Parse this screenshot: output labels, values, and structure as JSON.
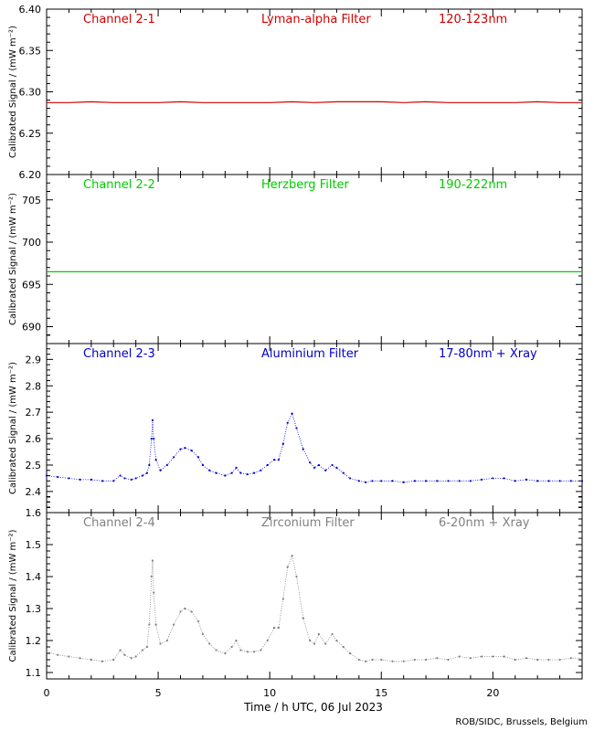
{
  "credit": "ROB/SIDC, Brussels, Belgium",
  "xlabel": "Time / h UTC, 06 Jul 2023",
  "xlim": [
    0,
    24
  ],
  "xticks": [
    0,
    5,
    10,
    15,
    20
  ],
  "chart_data": [
    {
      "type": "line",
      "channel": "Channel 2-1",
      "filter": "Lyman-alpha Filter",
      "band": "120-123nm",
      "ylabel": "Calibrated Signal / (mW m⁻²)",
      "ylim": [
        6.2,
        6.4
      ],
      "yticks": [
        6.2,
        6.25,
        6.3,
        6.35,
        6.4
      ],
      "ytick_labels": [
        "6.20",
        "6.25",
        "6.30",
        "6.35",
        "6.40"
      ],
      "color": "#d00000",
      "series": [
        {
          "x": [
            0,
            1,
            2,
            3,
            4,
            5,
            6,
            7,
            8,
            9,
            10,
            11,
            12,
            13,
            14,
            15,
            16,
            17,
            18,
            19,
            20,
            21,
            22,
            23,
            24
          ],
          "values": [
            6.287,
            6.287,
            6.288,
            6.287,
            6.287,
            6.287,
            6.288,
            6.287,
            6.287,
            6.287,
            6.287,
            6.288,
            6.287,
            6.288,
            6.288,
            6.288,
            6.287,
            6.288,
            6.287,
            6.287,
            6.287,
            6.287,
            6.288,
            6.287,
            6.287
          ]
        }
      ]
    },
    {
      "type": "line",
      "channel": "Channel 2-2",
      "filter": "Herzberg Filter",
      "band": "190-222nm",
      "ylabel": "Calibrated Signal / (mW m⁻²)",
      "ylim": [
        688,
        708
      ],
      "yticks": [
        690,
        695,
        700,
        705
      ],
      "ytick_labels": [
        "690",
        "695",
        "700",
        "705"
      ],
      "color": "#00cc00",
      "series": [
        {
          "x": [
            0,
            2,
            4,
            6,
            8,
            10,
            12,
            14,
            16,
            18,
            20,
            22,
            24
          ],
          "values": [
            696.5,
            696.5,
            696.5,
            696.5,
            696.5,
            696.5,
            696.5,
            696.5,
            696.5,
            696.5,
            696.5,
            696.5,
            696.5
          ]
        }
      ]
    },
    {
      "type": "scatter",
      "channel": "Channel 2-3",
      "filter": "Aluminium Filter",
      "band": "17-80nm + Xray",
      "ylabel": "Calibrated Signal / (mW m⁻²)",
      "ylim": [
        2.32,
        2.96
      ],
      "yticks": [
        2.4,
        2.5,
        2.6,
        2.7,
        2.8,
        2.9
      ],
      "ytick_labels": [
        "2.4",
        "2.5",
        "2.6",
        "2.7",
        "2.8",
        "2.9"
      ],
      "color": "#0000cc",
      "series": [
        {
          "x": [
            0,
            0.5,
            1,
            1.5,
            2,
            2.5,
            3,
            3.3,
            3.5,
            3.8,
            4,
            4.3,
            4.5,
            4.6,
            4.7,
            4.75,
            4.8,
            4.9,
            5.1,
            5.4,
            5.7,
            6,
            6.2,
            6.5,
            6.8,
            7,
            7.3,
            7.6,
            8,
            8.3,
            8.5,
            8.7,
            9,
            9.3,
            9.6,
            9.9,
            10.2,
            10.4,
            10.6,
            10.8,
            11,
            11.2,
            11.5,
            11.8,
            12,
            12.2,
            12.5,
            12.8,
            13,
            13.3,
            13.6,
            14,
            14.3,
            14.6,
            15,
            15.5,
            16,
            16.5,
            17,
            17.5,
            18,
            18.5,
            19,
            19.5,
            20,
            20.5,
            21,
            21.5,
            22,
            22.5,
            23,
            23.5,
            24
          ],
          "values": [
            2.46,
            2.455,
            2.45,
            2.445,
            2.445,
            2.44,
            2.44,
            2.46,
            2.45,
            2.445,
            2.45,
            2.46,
            2.47,
            2.5,
            2.6,
            2.67,
            2.6,
            2.52,
            2.48,
            2.5,
            2.53,
            2.56,
            2.565,
            2.555,
            2.53,
            2.5,
            2.48,
            2.47,
            2.46,
            2.47,
            2.49,
            2.47,
            2.465,
            2.47,
            2.48,
            2.5,
            2.52,
            2.52,
            2.58,
            2.66,
            2.695,
            2.64,
            2.56,
            2.51,
            2.49,
            2.5,
            2.48,
            2.5,
            2.49,
            2.47,
            2.45,
            2.44,
            2.435,
            2.44,
            2.44,
            2.44,
            2.435,
            2.44,
            2.44,
            2.44,
            2.44,
            2.44,
            2.44,
            2.445,
            2.45,
            2.45,
            2.44,
            2.445,
            2.44,
            2.44,
            2.44,
            2.44,
            2.44
          ]
        }
      ]
    },
    {
      "type": "scatter",
      "channel": "Channel 2-4",
      "filter": "Zirconium Filter",
      "band": "6-20nm + Xray",
      "ylabel": "Calibrated Signal / (mW m⁻²)",
      "ylim": [
        1.08,
        1.6
      ],
      "yticks": [
        1.1,
        1.2,
        1.3,
        1.4,
        1.5,
        1.6
      ],
      "ytick_labels": [
        "1.1",
        "1.2",
        "1.3",
        "1.4",
        "1.5",
        "1.6"
      ],
      "color": "#808080",
      "series": [
        {
          "x": [
            0,
            0.5,
            1,
            1.5,
            2,
            2.5,
            3,
            3.3,
            3.5,
            3.8,
            4,
            4.3,
            4.5,
            4.6,
            4.7,
            4.75,
            4.8,
            4.9,
            5.1,
            5.4,
            5.7,
            6,
            6.2,
            6.5,
            6.8,
            7,
            7.3,
            7.6,
            8,
            8.3,
            8.5,
            8.7,
            9,
            9.3,
            9.6,
            9.9,
            10.2,
            10.4,
            10.6,
            10.8,
            11,
            11.2,
            11.5,
            11.8,
            12,
            12.2,
            12.5,
            12.8,
            13,
            13.3,
            13.6,
            14,
            14.3,
            14.6,
            15,
            15.5,
            16,
            16.5,
            17,
            17.5,
            18,
            18.5,
            19,
            19.5,
            20,
            20.5,
            21,
            21.5,
            22,
            22.5,
            23,
            23.5,
            24
          ],
          "values": [
            1.165,
            1.155,
            1.15,
            1.145,
            1.14,
            1.135,
            1.14,
            1.17,
            1.155,
            1.145,
            1.15,
            1.17,
            1.18,
            1.25,
            1.4,
            1.45,
            1.35,
            1.25,
            1.19,
            1.2,
            1.25,
            1.29,
            1.3,
            1.29,
            1.26,
            1.22,
            1.19,
            1.17,
            1.16,
            1.18,
            1.2,
            1.17,
            1.165,
            1.165,
            1.17,
            1.2,
            1.24,
            1.24,
            1.33,
            1.43,
            1.465,
            1.4,
            1.27,
            1.2,
            1.19,
            1.22,
            1.19,
            1.22,
            1.2,
            1.18,
            1.16,
            1.14,
            1.135,
            1.14,
            1.14,
            1.135,
            1.135,
            1.14,
            1.14,
            1.145,
            1.14,
            1.15,
            1.145,
            1.15,
            1.15,
            1.15,
            1.14,
            1.145,
            1.14,
            1.14,
            1.14,
            1.145,
            1.145
          ]
        }
      ]
    }
  ]
}
